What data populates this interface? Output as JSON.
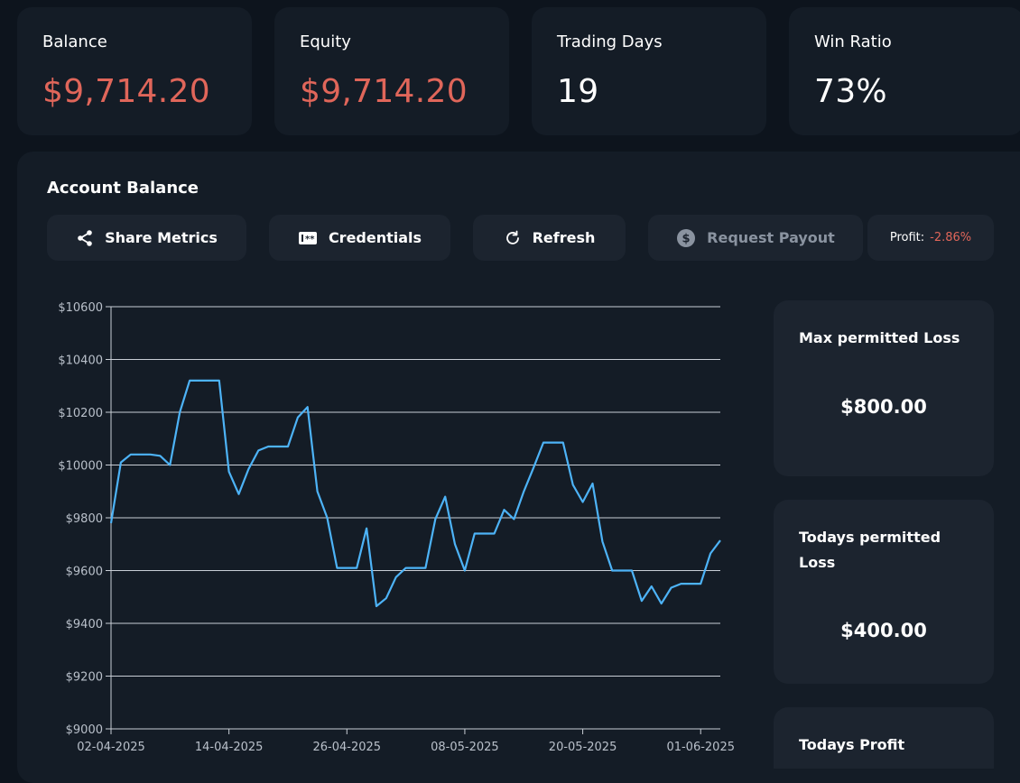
{
  "stats": [
    {
      "label": "Balance",
      "value": "$9,714.20",
      "tone": "negative"
    },
    {
      "label": "Equity",
      "value": "$9,714.20",
      "tone": "negative"
    },
    {
      "label": "Trading Days",
      "value": "19",
      "tone": "neutral"
    },
    {
      "label": "Win Ratio",
      "value": "73%",
      "tone": "neutral"
    }
  ],
  "panel": {
    "title": "Account Balance",
    "buttons": {
      "share": "Share Metrics",
      "credentials": "Credentials",
      "refresh": "Refresh",
      "payout": "Request Payout"
    },
    "profit_label": "Profit:",
    "profit_value": "-2.86%"
  },
  "side": {
    "max_loss_title": "Max permitted Loss",
    "max_loss_value": "$800.00",
    "today_loss_title": "Todays permitted Loss",
    "today_loss_value": "$400.00",
    "today_profit_title": "Todays Profit"
  },
  "colors": {
    "accent_line": "#4db3f7",
    "negative": "#e0665a",
    "card": "#141c26",
    "button": "#1c242f"
  },
  "chart_data": {
    "type": "line",
    "title": "Account Balance",
    "ylim": [
      9000,
      10600
    ],
    "yticks": [
      9000,
      9200,
      9400,
      9600,
      9800,
      10000,
      10200,
      10400,
      10600
    ],
    "ytick_labels": [
      "$9000",
      "$9200",
      "$9400",
      "$9600",
      "$9800",
      "$10000",
      "$10200",
      "$10400",
      "$10600"
    ],
    "xlim": [
      0,
      62
    ],
    "xticks": [
      0,
      12,
      24,
      36,
      48,
      60
    ],
    "xtick_labels": [
      "02-04-2025",
      "14-04-2025",
      "26-04-2025",
      "08-05-2025",
      "20-05-2025",
      "01-06-2025"
    ],
    "grid": true,
    "series": [
      {
        "name": "Balance",
        "x": [
          0,
          1,
          2,
          3,
          4,
          5,
          6,
          7,
          8,
          9,
          10,
          11,
          12,
          13,
          14,
          15,
          16,
          17,
          18,
          19,
          20,
          21,
          22,
          23,
          24,
          25,
          26,
          27,
          28,
          29,
          30,
          31,
          32,
          33,
          34,
          35,
          36,
          37,
          38,
          39,
          40,
          41,
          42,
          43,
          44,
          45,
          46,
          47,
          48,
          49,
          50,
          51,
          52,
          53,
          54,
          55,
          56,
          57,
          58,
          59,
          60,
          61,
          62
        ],
        "values": [
          9780,
          10010,
          10040,
          10040,
          10040,
          10035,
          10000,
          10200,
          10320,
          10320,
          10320,
          10320,
          9975,
          9890,
          9985,
          10055,
          10070,
          10070,
          10070,
          10180,
          10220,
          9900,
          9800,
          9610,
          9610,
          9610,
          9760,
          9465,
          9495,
          9575,
          9610,
          9610,
          9610,
          9795,
          9880,
          9700,
          9600,
          9740,
          9740,
          9740,
          9830,
          9795,
          9900,
          9990,
          10085,
          10085,
          10085,
          9925,
          9860,
          9930,
          9710,
          9600,
          9600,
          9600,
          9485,
          9540,
          9475,
          9535,
          9550,
          9550,
          9550,
          9665,
          9714.2
        ]
      }
    ]
  }
}
